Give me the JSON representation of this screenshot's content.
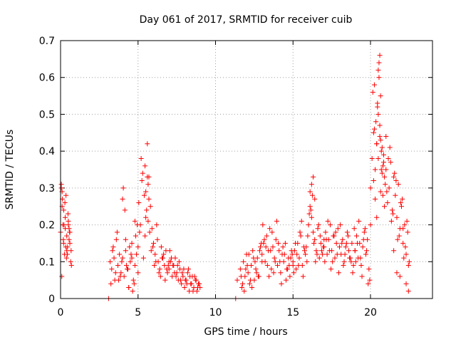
{
  "chart_data": {
    "type": "scatter",
    "title": "Day 061 of 2017, SRMTID for receiver cuib",
    "xlabel": "GPS time / hours",
    "ylabel": "SRMTID / TECUs",
    "xlim": [
      0,
      24
    ],
    "ylim": [
      0,
      0.7
    ],
    "xticks": [
      0,
      5,
      10,
      15,
      20
    ],
    "xtick_labels": [
      "0",
      "5",
      "10",
      "15",
      "20"
    ],
    "yticks": [
      0,
      0.1,
      0.2,
      0.3,
      0.4,
      0.5,
      0.6,
      0.7
    ],
    "ytick_labels": [
      "0",
      "0.1",
      "0.2",
      "0.3",
      "0.4",
      "0.5",
      "0.6",
      "0.7"
    ],
    "grid": true,
    "marker": "+",
    "marker_color": "#ff0000",
    "series": [
      {
        "name": "SRMTID",
        "x": [
          0.0,
          0.05,
          0.1,
          0.15,
          0.2,
          0.25,
          0.3,
          0.35,
          0.4,
          0.45,
          0.5,
          0.55,
          0.6,
          0.65,
          0.7,
          0.05,
          0.12,
          0.2,
          0.3,
          0.4,
          0.5,
          0.6,
          0.08,
          0.18,
          0.28,
          0.38,
          0.48,
          0.58,
          0.68,
          0.1,
          0.22,
          0.33,
          0.44,
          0.55,
          3.1,
          3.2,
          3.3,
          3.4,
          3.5,
          3.6,
          3.7,
          3.8,
          3.9,
          4.0,
          4.1,
          4.2,
          4.3,
          4.4,
          4.5,
          4.6,
          4.7,
          4.8,
          4.9,
          5.0,
          3.25,
          3.45,
          3.65,
          3.85,
          4.05,
          4.25,
          4.45,
          4.65,
          4.85,
          3.35,
          3.55,
          3.75,
          3.95,
          4.15,
          4.35,
          4.55,
          4.75,
          4.95,
          4.0,
          4.2,
          4.4,
          4.6,
          4.8,
          5.0,
          5.1,
          5.2,
          5.3,
          5.4,
          5.5,
          5.6,
          5.7,
          5.8,
          5.9,
          6.0,
          6.1,
          6.2,
          6.3,
          6.4,
          6.5,
          6.6,
          6.7,
          6.8,
          6.9,
          7.0,
          5.05,
          5.25,
          5.45,
          5.65,
          5.85,
          6.05,
          6.25,
          6.45,
          6.65,
          6.85,
          5.15,
          5.35,
          5.55,
          5.75,
          5.95,
          6.15,
          6.35,
          6.55,
          6.75,
          6.95,
          5.6,
          5.65,
          5.7,
          5.5,
          5.45,
          7.0,
          7.1,
          7.2,
          7.3,
          7.4,
          7.5,
          7.6,
          7.7,
          7.8,
          7.9,
          8.0,
          8.1,
          8.2,
          8.3,
          8.4,
          8.5,
          8.6,
          8.7,
          8.8,
          8.9,
          9.0,
          7.05,
          7.25,
          7.45,
          7.65,
          7.85,
          8.05,
          8.25,
          8.45,
          8.65,
          8.85,
          7.15,
          7.35,
          7.55,
          7.75,
          7.95,
          8.15,
          8.35,
          8.55,
          8.75,
          8.95,
          11.3,
          11.4,
          11.6,
          11.7,
          11.8,
          11.9,
          12.0,
          12.1,
          12.2,
          12.3,
          12.4,
          12.5,
          12.6,
          12.7,
          12.8,
          12.9,
          13.0,
          11.65,
          11.85,
          12.05,
          12.25,
          12.45,
          12.65,
          12.85,
          11.75,
          11.95,
          12.15,
          12.35,
          12.55,
          12.75,
          12.95,
          13.0,
          13.1,
          13.2,
          13.3,
          13.4,
          13.5,
          13.6,
          13.7,
          13.8,
          13.9,
          14.0,
          14.1,
          14.2,
          14.3,
          14.4,
          14.5,
          14.6,
          14.7,
          14.8,
          14.9,
          15.0,
          13.05,
          13.25,
          13.45,
          13.65,
          13.85,
          14.05,
          14.25,
          14.45,
          14.65,
          14.85,
          13.15,
          13.35,
          13.55,
          13.75,
          13.95,
          14.15,
          14.35,
          14.55,
          14.75,
          14.95,
          15.0,
          15.1,
          15.2,
          15.3,
          15.4,
          15.5,
          15.6,
          15.7,
          15.8,
          15.9,
          16.0,
          16.1,
          16.2,
          16.3,
          16.4,
          16.5,
          16.6,
          16.7,
          16.8,
          16.9,
          17.0,
          15.05,
          15.25,
          15.45,
          15.65,
          15.85,
          16.05,
          16.25,
          16.45,
          16.65,
          16.85,
          15.15,
          15.35,
          15.55,
          15.75,
          15.95,
          16.15,
          16.35,
          16.55,
          16.75,
          16.95,
          16.3,
          16.2,
          16.1,
          16.4,
          17.0,
          17.1,
          17.2,
          17.3,
          17.4,
          17.5,
          17.6,
          17.7,
          17.8,
          17.9,
          18.0,
          18.1,
          18.2,
          18.3,
          18.4,
          18.5,
          18.6,
          18.7,
          18.8,
          18.9,
          19.0,
          17.05,
          17.25,
          17.45,
          17.65,
          17.85,
          18.05,
          18.25,
          18.45,
          18.65,
          18.85,
          17.15,
          17.35,
          17.55,
          17.75,
          17.95,
          18.15,
          18.35,
          18.55,
          18.75,
          18.95,
          19.0,
          19.1,
          19.2,
          19.3,
          19.4,
          19.5,
          19.6,
          19.7,
          19.8,
          19.9,
          20.0,
          19.05,
          19.25,
          19.45,
          19.65,
          19.85,
          19.15,
          19.35,
          19.55,
          19.75,
          19.95,
          20.0,
          20.1,
          20.2,
          20.3,
          20.4,
          20.5,
          20.6,
          20.7,
          20.8,
          20.9,
          21.0,
          20.15,
          20.25,
          20.35,
          20.45,
          20.55,
          20.65,
          20.75,
          20.85,
          20.95,
          20.2,
          20.3,
          20.4,
          20.5,
          20.6,
          20.7,
          20.8,
          20.9,
          20.25,
          20.45,
          20.65,
          20.85,
          20.4,
          20.5,
          20.6,
          20.55,
          20.65,
          20.75,
          21.0,
          21.1,
          21.2,
          21.3,
          21.4,
          21.5,
          21.6,
          21.7,
          21.8,
          21.9,
          22.0,
          22.1,
          22.2,
          22.3,
          22.4,
          22.5,
          21.05,
          21.25,
          21.45,
          21.65,
          21.85,
          22.05,
          22.25,
          22.45,
          21.15,
          21.35,
          21.55,
          21.75,
          21.95,
          22.15,
          22.35,
          21.5,
          21.7,
          21.9,
          22.1,
          22.3,
          22.45
        ],
        "y": [
          0.18,
          0.3,
          0.25,
          0.2,
          0.15,
          0.12,
          0.22,
          0.28,
          0.17,
          0.14,
          0.2,
          0.16,
          0.18,
          0.1,
          0.09,
          0.31,
          0.27,
          0.24,
          0.19,
          0.13,
          0.21,
          0.15,
          0.06,
          0.16,
          0.26,
          0.11,
          0.23,
          0.18,
          0.13,
          0.29,
          0.2,
          0.14,
          0.12,
          0.19,
          0.0,
          0.1,
          0.08,
          0.14,
          0.05,
          0.16,
          0.09,
          0.12,
          0.07,
          0.11,
          0.06,
          0.13,
          0.08,
          0.03,
          0.1,
          0.15,
          0.05,
          0.09,
          0.12,
          0.07,
          0.04,
          0.11,
          0.18,
          0.06,
          0.3,
          0.09,
          0.14,
          0.02,
          0.17,
          0.13,
          0.07,
          0.05,
          0.1,
          0.24,
          0.08,
          0.12,
          0.04,
          0.2,
          0.27,
          0.16,
          0.03,
          0.11,
          0.21,
          0.14,
          0.18,
          0.38,
          0.34,
          0.28,
          0.22,
          0.42,
          0.33,
          0.25,
          0.19,
          0.15,
          0.12,
          0.2,
          0.1,
          0.08,
          0.14,
          0.11,
          0.09,
          0.13,
          0.07,
          0.1,
          0.26,
          0.32,
          0.17,
          0.21,
          0.13,
          0.09,
          0.16,
          0.06,
          0.12,
          0.08,
          0.2,
          0.11,
          0.24,
          0.18,
          0.14,
          0.1,
          0.07,
          0.11,
          0.05,
          0.09,
          0.33,
          0.31,
          0.27,
          0.29,
          0.36,
          0.08,
          0.1,
          0.06,
          0.09,
          0.11,
          0.07,
          0.05,
          0.08,
          0.04,
          0.06,
          0.03,
          0.05,
          0.07,
          0.02,
          0.04,
          0.06,
          0.03,
          0.05,
          0.02,
          0.04,
          0.03,
          0.13,
          0.09,
          0.06,
          0.1,
          0.07,
          0.05,
          0.08,
          0.04,
          0.06,
          0.03,
          0.11,
          0.07,
          0.09,
          0.05,
          0.08,
          0.04,
          0.06,
          0.02,
          0.05,
          0.04,
          0.0,
          0.05,
          0.08,
          0.03,
          0.1,
          0.06,
          0.12,
          0.07,
          0.04,
          0.09,
          0.13,
          0.05,
          0.08,
          0.11,
          0.06,
          0.14,
          0.1,
          0.06,
          0.02,
          0.09,
          0.05,
          0.11,
          0.07,
          0.13,
          0.04,
          0.08,
          0.12,
          0.03,
          0.1,
          0.06,
          0.15,
          0.12,
          0.15,
          0.1,
          0.17,
          0.13,
          0.19,
          0.08,
          0.14,
          0.11,
          0.16,
          0.09,
          0.13,
          0.07,
          0.12,
          0.1,
          0.15,
          0.08,
          0.11,
          0.06,
          0.13,
          0.09,
          0.2,
          0.14,
          0.06,
          0.18,
          0.1,
          0.15,
          0.04,
          0.12,
          0.08,
          0.11,
          0.16,
          0.09,
          0.13,
          0.07,
          0.21,
          0.1,
          0.14,
          0.05,
          0.09,
          0.12,
          0.1,
          0.13,
          0.08,
          0.15,
          0.11,
          0.17,
          0.09,
          0.14,
          0.12,
          0.1,
          0.2,
          0.25,
          0.22,
          0.18,
          0.16,
          0.13,
          0.19,
          0.11,
          0.15,
          0.12,
          0.16,
          0.07,
          0.12,
          0.18,
          0.06,
          0.14,
          0.23,
          0.28,
          0.1,
          0.2,
          0.13,
          0.15,
          0.09,
          0.21,
          0.13,
          0.17,
          0.24,
          0.15,
          0.12,
          0.17,
          0.14,
          0.33,
          0.31,
          0.29,
          0.27,
          0.14,
          0.18,
          0.12,
          0.16,
          0.2,
          0.13,
          0.17,
          0.11,
          0.15,
          0.19,
          0.14,
          0.12,
          0.16,
          0.1,
          0.14,
          0.18,
          0.13,
          0.11,
          0.15,
          0.09,
          0.13,
          0.1,
          0.21,
          0.08,
          0.17,
          0.12,
          0.2,
          0.09,
          0.15,
          0.11,
          0.07,
          0.16,
          0.13,
          0.1,
          0.18,
          0.07,
          0.15,
          0.12,
          0.17,
          0.1,
          0.19,
          0.13,
          0.17,
          0.11,
          0.15,
          0.09,
          0.14,
          0.18,
          0.12,
          0.16,
          0.08,
          0.2,
          0.1,
          0.21,
          0.06,
          0.19,
          0.04,
          0.15,
          0.11,
          0.16,
          0.13,
          0.05,
          0.3,
          0.38,
          0.45,
          0.35,
          0.42,
          0.5,
          0.47,
          0.4,
          0.36,
          0.33,
          0.44,
          0.56,
          0.58,
          0.48,
          0.52,
          0.6,
          0.43,
          0.41,
          0.39,
          0.31,
          0.32,
          0.27,
          0.22,
          0.38,
          0.44,
          0.35,
          0.28,
          0.25,
          0.46,
          0.53,
          0.55,
          0.37,
          0.42,
          0.62,
          0.66,
          0.64,
          0.29,
          0.34,
          0.35,
          0.26,
          0.3,
          0.37,
          0.24,
          0.33,
          0.28,
          0.22,
          0.31,
          0.19,
          0.25,
          0.15,
          0.2,
          0.12,
          0.18,
          0.1,
          0.29,
          0.41,
          0.23,
          0.32,
          0.17,
          0.27,
          0.14,
          0.09,
          0.38,
          0.21,
          0.34,
          0.16,
          0.26,
          0.11,
          0.21,
          0.13,
          0.07,
          0.06,
          0.19,
          0.04,
          0.02
        ]
      }
    ]
  }
}
